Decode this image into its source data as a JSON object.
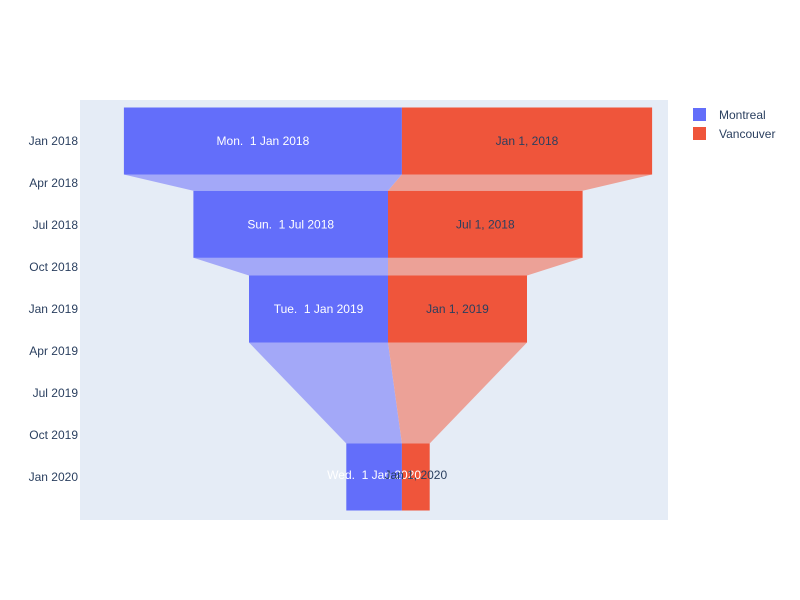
{
  "chart_data": {
    "type": "funnel",
    "title": "",
    "xlabel": "",
    "ylabel": "",
    "categories": [
      "2018-01-01",
      "2018-07-01",
      "2019-01-01",
      "2020-01-01"
    ],
    "y_ticks": [
      "Jan 2018",
      "Apr 2018",
      "Jul 2018",
      "Oct 2018",
      "Jan 2019",
      "Apr 2019",
      "Jul 2019",
      "Oct 2019",
      "Jan 2020"
    ],
    "grid": false,
    "legend_position": "top-right",
    "series": [
      {
        "name": "Montreal",
        "color": "#636efa",
        "connector_color": "#a3a8f8",
        "label_color": "#ffffff",
        "values": [
          100,
          70,
          50,
          20
        ],
        "labels": [
          "Mon.  1 Jan 2018",
          "Sun.  1 Jul 2018",
          "Tue.  1 Jan 2019",
          "Wed.  1 Jan 2020"
        ]
      },
      {
        "name": "Vancouver",
        "color": "#ef553b",
        "connector_color": "#eca197",
        "label_color": "#2a3f5f",
        "values": [
          90,
          70,
          50,
          10
        ],
        "labels": [
          "Jan 1, 2018",
          "Jul 1, 2018",
          "Jan 1, 2019",
          "Jan 1, 2020"
        ]
      }
    ]
  }
}
